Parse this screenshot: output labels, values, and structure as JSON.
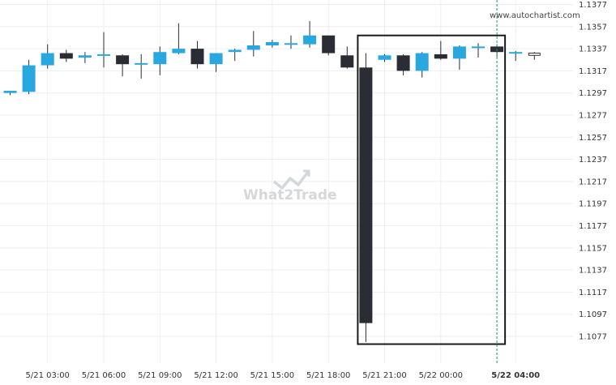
{
  "watermark": {
    "text": "What2Trade"
  },
  "credit": "www.autochartist.com",
  "colors": {
    "bull": "#29a8e0",
    "bear": "#2b2d35",
    "wick": "#2b2d35",
    "grid": "#eceef0",
    "pattern_box": "#1a1a1a",
    "marker_line": "#2a8c7e"
  },
  "chart_data": {
    "type": "candlestick",
    "y_ticks": [
      "1.1377",
      "1.1357",
      "1.1337",
      "1.1317",
      "1.1297",
      "1.1277",
      "1.1257",
      "1.1237",
      "1.1217",
      "1.1197",
      "1.1177",
      "1.1157",
      "1.1137",
      "1.1117",
      "1.1097",
      "1.1077"
    ],
    "ylim": [
      1.1064,
      1.1384
    ],
    "x_ticks": [
      {
        "label": "5/21 03:00",
        "index": 2
      },
      {
        "label": "5/21 06:00",
        "index": 5
      },
      {
        "label": "5/21 09:00",
        "index": 8
      },
      {
        "label": "5/21 12:00",
        "index": 11
      },
      {
        "label": "5/21 15:00",
        "index": 14
      },
      {
        "label": "5/21 18:00",
        "index": 17
      },
      {
        "label": "5/21 21:00",
        "index": 20
      },
      {
        "label": "5/22 00:00",
        "index": 23
      },
      {
        "label": "5/22 04:00",
        "index": 27,
        "bold": true
      }
    ],
    "candles": [
      {
        "o": 1.1297,
        "h": 1.1299,
        "l": 1.1295,
        "c": 1.1299
      },
      {
        "o": 1.1298,
        "h": 1.1327,
        "l": 1.1296,
        "c": 1.1322
      },
      {
        "o": 1.1322,
        "h": 1.1341,
        "l": 1.1319,
        "c": 1.1333
      },
      {
        "o": 1.1333,
        "h": 1.1336,
        "l": 1.1325,
        "c": 1.1328
      },
      {
        "o": 1.1329,
        "h": 1.1334,
        "l": 1.1324,
        "c": 1.1331
      },
      {
        "o": 1.1331,
        "h": 1.1352,
        "l": 1.132,
        "c": 1.1332
      },
      {
        "o": 1.1331,
        "h": 1.1332,
        "l": 1.1312,
        "c": 1.1323
      },
      {
        "o": 1.1324,
        "h": 1.1332,
        "l": 1.131,
        "c": 1.1324
      },
      {
        "o": 1.1323,
        "h": 1.1339,
        "l": 1.1313,
        "c": 1.1334
      },
      {
        "o": 1.1333,
        "h": 1.136,
        "l": 1.1332,
        "c": 1.1337
      },
      {
        "o": 1.1337,
        "h": 1.1344,
        "l": 1.1319,
        "c": 1.1323
      },
      {
        "o": 1.1323,
        "h": 1.1333,
        "l": 1.1316,
        "c": 1.1333
      },
      {
        "o": 1.1334,
        "h": 1.1337,
        "l": 1.1326,
        "c": 1.1336
      },
      {
        "o": 1.1336,
        "h": 1.1353,
        "l": 1.133,
        "c": 1.134
      },
      {
        "o": 1.134,
        "h": 1.1345,
        "l": 1.1338,
        "c": 1.1343
      },
      {
        "o": 1.1341,
        "h": 1.1349,
        "l": 1.1337,
        "c": 1.1342
      },
      {
        "o": 1.1341,
        "h": 1.1362,
        "l": 1.1338,
        "c": 1.1349
      },
      {
        "o": 1.1349,
        "h": 1.1349,
        "l": 1.1331,
        "c": 1.1333
      },
      {
        "o": 1.1331,
        "h": 1.1339,
        "l": 1.1319,
        "c": 1.132
      },
      {
        "o": 1.132,
        "h": 1.1333,
        "l": 1.1072,
        "c": 1.1089
      },
      {
        "o": 1.1327,
        "h": 1.1332,
        "l": 1.1325,
        "c": 1.1331
      },
      {
        "o": 1.1331,
        "h": 1.1332,
        "l": 1.1313,
        "c": 1.1317
      },
      {
        "o": 1.1317,
        "h": 1.1334,
        "l": 1.1311,
        "c": 1.1333
      },
      {
        "o": 1.1332,
        "h": 1.1344,
        "l": 1.1327,
        "c": 1.1328
      },
      {
        "o": 1.1328,
        "h": 1.134,
        "l": 1.1318,
        "c": 1.1339
      },
      {
        "o": 1.1338,
        "h": 1.1342,
        "l": 1.1329,
        "c": 1.1339
      },
      {
        "o": 1.1339,
        "h": 1.1341,
        "l": 1.133,
        "c": 1.1334
      },
      {
        "o": 1.1334,
        "h": 1.1335,
        "l": 1.1326,
        "c": 1.1334
      },
      {
        "o": 1.1333,
        "h": 1.1334,
        "l": 1.1327,
        "c": 1.1331
      }
    ],
    "pattern_range": {
      "from_index": 19,
      "to_index": 26,
      "top": 1.1349,
      "bottom": 1.107
    },
    "current_time_index": 26,
    "grid": true
  }
}
